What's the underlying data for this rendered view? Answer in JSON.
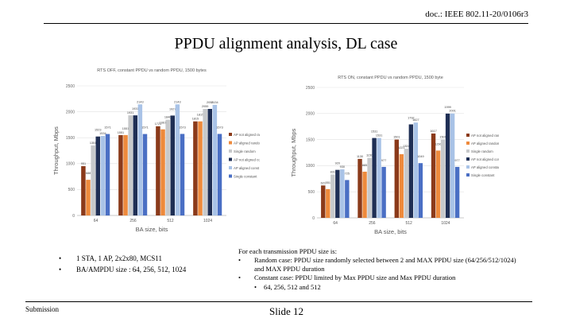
{
  "header": {
    "doc_id": "doc.: IEEE 802.11-20/0106r3"
  },
  "title": "PPDU alignment analysis, DL case",
  "colors": [
    "#8b3a1a",
    "#ee8a3c",
    "#c7c9cb",
    "#1f2f55",
    "#a9c3e7",
    "#4a6fc4"
  ],
  "chart_data": [
    {
      "type": "bar",
      "title": "RTS OFF, constant PPDU vs random PPDU, 1500 bytes",
      "xlabel": "BA size, bits",
      "ylabel": "Throughput, Mbps",
      "ylim": [
        0,
        2500
      ],
      "yticks": [
        0,
        500,
        1000,
        1500,
        2000,
        2500
      ],
      "categories": [
        "64",
        "256",
        "512",
        "1024"
      ],
      "series": [
        {
          "name": "AP not aligned random",
          "values": [
            951,
            1551,
            1721,
            1815
          ]
        },
        {
          "name": "AP aligned random",
          "values": [
            688,
            1551,
            1661,
            1815
          ]
        },
        {
          "name": "Single random",
          "values": [
            1351,
            1931,
            1846,
            2055
          ]
        },
        {
          "name": "AP not aligned const",
          "values": [
            1523,
            1931,
            1927,
            2055
          ]
        },
        {
          "name": "AP aligned const",
          "values": [
            1534,
            2143,
            2143,
            2134
          ]
        },
        {
          "name": "Single constant",
          "values": [
            1571,
            1571,
            1573,
            1573
          ]
        }
      ],
      "data_labels": [
        [
          "951",
          "688",
          "1351",
          "1523",
          "1534",
          "1571"
        ],
        [
          "1551",
          "1551",
          "1931",
          "1931",
          "2143",
          "1571"
        ],
        [
          "1721",
          "1661",
          "1846",
          "1927",
          "2143",
          "1573"
        ],
        [
          "1815",
          "1815",
          "2055",
          "2055",
          "2134",
          "1573"
        ]
      ]
    },
    {
      "type": "bar",
      "title": "RTS ON, constant PPDU vs random PPDU, 1500 byte",
      "xlabel": "BA size, bits",
      "ylabel": "Throughput, Mbps",
      "ylim": [
        0,
        2500
      ],
      "yticks": [
        0,
        500,
        1000,
        1500,
        2000,
        2500
      ],
      "categories": [
        "64",
        "256",
        "512",
        "1024"
      ],
      "series": [
        {
          "name": "AP not aligned random",
          "values": [
            621,
            1130,
            1501,
            1617
          ]
        },
        {
          "name": "AP aligned random",
          "values": [
            551,
            885,
            1221,
            1290
          ]
        },
        {
          "name": "Single random",
          "values": [
            831,
            1150,
            1324,
            1501
          ]
        },
        {
          "name": "AP not aligned constant",
          "values": [
            920,
            1531,
            1792,
            1999
          ]
        },
        {
          "name": "AP aligned constant",
          "values": [
            930,
            1531,
            1827,
            2001
          ]
        },
        {
          "name": "Single constant",
          "values": [
            725,
            977,
            1049,
            977
          ]
        }
      ],
      "data_labels": [
        [
          "621",
          "551",
          "831",
          "920",
          "930",
          "725"
        ],
        [
          "1130",
          "885",
          "1150",
          "1531",
          "1531",
          "977"
        ],
        [
          "1501",
          "1221",
          "1324",
          "1792",
          "1827",
          "1049"
        ],
        [
          "1617",
          "1290",
          "1501",
          "1999",
          "2001",
          "977"
        ]
      ]
    }
  ],
  "bullets": [
    "1 STA, 1 AP, 2x2x80, MCS11",
    "BA/AMPDU size : 64, 256, 512, 1024"
  ],
  "notes": {
    "intro": "For each transmission PPDU size is:",
    "items": [
      {
        "bullet": "•",
        "text": "Random case: PPDU size randomly selected between 2 and MAX PPDU size (64/256/512/1024) and MAX PPDU duration"
      },
      {
        "bullet": "•",
        "text": "Constant case: PPDU limited by Max PPDU size and Max PPDU duration"
      }
    ],
    "subitem": {
      "bullet": "•",
      "text": "64, 256, 512 and 512"
    }
  },
  "footer": {
    "submission": "Submission",
    "slide": "Slide 12"
  }
}
